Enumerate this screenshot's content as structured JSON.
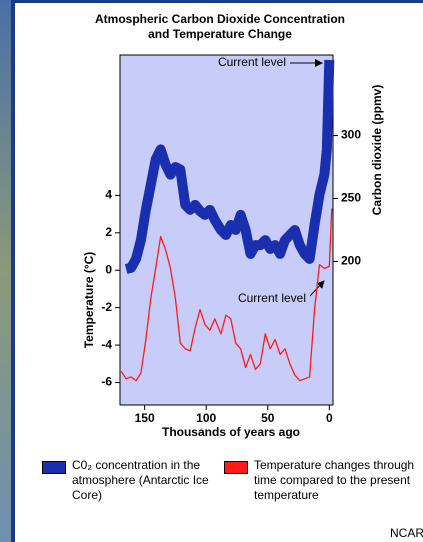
{
  "chart_data": {
    "type": "line",
    "title": "Atmospheric Carbon Dioxide Concentration and Temperature Change",
    "xlabel": "Thousands of years ago",
    "ylabel": "Temperature (°C)",
    "y2label": "Carbon dioxide (ppmv)",
    "xlim": [
      170,
      -3
    ],
    "xticks": [
      150,
      100,
      50,
      0
    ],
    "ylim": [
      -7.2,
      11.5
    ],
    "yticks": [
      4,
      2,
      0,
      -2,
      -4,
      -6
    ],
    "y2lim": [
      86,
      364
    ],
    "y2ticks": [
      300,
      250,
      200
    ],
    "annotations": [
      "Current level",
      "Current level"
    ],
    "credit": "NCAR",
    "series": [
      {
        "name": "C0₂ concentration in the atmosphere (Antarctic Ice Core)",
        "color": "#1a2fb0",
        "axis": "y2",
        "x": [
          165,
          161,
          157,
          153,
          149,
          145,
          141,
          137,
          133,
          129,
          125,
          121,
          117,
          113,
          109,
          105,
          101,
          97,
          93,
          88,
          84,
          80,
          76,
          72,
          68,
          64,
          60,
          56,
          52,
          48,
          44,
          40,
          36,
          32,
          28,
          24,
          20,
          16,
          12,
          8,
          4,
          2,
          0
        ],
        "values": [
          194,
          195,
          202,
          217,
          241,
          261,
          281,
          289,
          277,
          269,
          275,
          273,
          245,
          241,
          245,
          240,
          237,
          241,
          233,
          225,
          221,
          229,
          225,
          237,
          225,
          206,
          213,
          213,
          217,
          210,
          213,
          206,
          217,
          221,
          225,
          213,
          206,
          202,
          229,
          253,
          269,
          289,
          360
        ]
      },
      {
        "name": "Temperature changes through time compared to the present temperature",
        "color": "#ff1a1a",
        "axis": "y",
        "x": [
          169,
          165,
          161,
          157,
          153,
          149,
          145,
          141,
          137,
          133,
          129,
          125,
          121,
          117,
          113,
          109,
          105,
          101,
          97,
          93,
          88,
          84,
          80,
          76,
          72,
          68,
          64,
          60,
          56,
          52,
          48,
          44,
          40,
          36,
          32,
          28,
          24,
          20,
          16,
          12,
          8,
          4,
          0,
          -2
        ],
        "values": [
          -5.4,
          -5.8,
          -5.7,
          -5.9,
          -5.5,
          -3.7,
          -1.5,
          0.1,
          1.8,
          1.1,
          0.1,
          -1.5,
          -3.9,
          -4.2,
          -4.3,
          -3.1,
          -2.1,
          -2.9,
          -3.2,
          -2.6,
          -3.4,
          -2.4,
          -2.6,
          -3.9,
          -4.2,
          -5.2,
          -4.5,
          -5.3,
          -5.0,
          -3.4,
          -4.2,
          -3.7,
          -4.5,
          -4.2,
          -5.0,
          -5.6,
          -5.9,
          -5.8,
          -5.7,
          -2.1,
          0.3,
          0.1,
          0.2,
          3.3
        ]
      }
    ]
  }
}
